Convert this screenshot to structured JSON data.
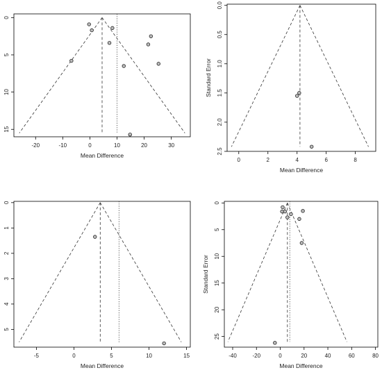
{
  "chart_data": [
    {
      "type": "scatter",
      "subtype": "funnel-plot",
      "xlabel": "Mean Difference",
      "ylabel": "",
      "xlim": [
        -28,
        37
      ],
      "ylim": [
        16,
        -0.5
      ],
      "y_reversed": true,
      "xticks": [
        -20,
        -10,
        0,
        10,
        20,
        30
      ],
      "yticks": [
        0,
        5,
        10,
        15
      ],
      "pooled_estimate": 4.5,
      "funnel_apex_se": 0,
      "funnel_base_se": 15.5,
      "funnel_base_x": [
        -26,
        35
      ],
      "reference_line": 10,
      "points": [
        {
          "x": -0.3,
          "y": 0.9
        },
        {
          "x": 0.7,
          "y": 1.7
        },
        {
          "x": 8.3,
          "y": 1.4
        },
        {
          "x": 7.2,
          "y": 3.4
        },
        {
          "x": 22.5,
          "y": 2.5
        },
        {
          "x": 21.5,
          "y": 3.6
        },
        {
          "x": -6.8,
          "y": 5.8
        },
        {
          "x": 12.5,
          "y": 6.5
        },
        {
          "x": 25.3,
          "y": 6.2
        },
        {
          "x": 14.8,
          "y": 15.7
        }
      ]
    },
    {
      "type": "scatter",
      "subtype": "funnel-plot",
      "xlabel": "Mean Difference",
      "ylabel": "Standard Error",
      "xlim": [
        -0.8,
        9.4
      ],
      "ylim": [
        2.5,
        -0.02
      ],
      "y_reversed": true,
      "xticks": [
        0,
        2,
        4,
        6,
        8
      ],
      "yticks": [
        0.0,
        0.5,
        1.0,
        1.5,
        2.0,
        2.5
      ],
      "ytick_labels": [
        "0.0",
        "0.5",
        "1.0",
        "1.5",
        "2.0",
        "2.5"
      ],
      "pooled_estimate": 4.2,
      "funnel_apex_se": 0,
      "funnel_base_se": 2.42,
      "funnel_base_x": [
        -0.5,
        8.9
      ],
      "reference_line": null,
      "points": [
        {
          "x": 4.15,
          "y": 1.5
        },
        {
          "x": 4.0,
          "y": 1.55
        },
        {
          "x": 5.0,
          "y": 2.42
        }
      ]
    },
    {
      "type": "scatter",
      "subtype": "funnel-plot",
      "xlabel": "Mean Difference",
      "ylabel": "Standard Error",
      "xlim": [
        -8,
        15.5
      ],
      "ylim": [
        5.7,
        -0.05
      ],
      "y_reversed": true,
      "xticks": [
        -5,
        0,
        5,
        10,
        15
      ],
      "yticks": [
        0,
        1,
        2,
        3,
        4,
        5
      ],
      "pooled_estimate": 3.5,
      "funnel_apex_se": 0,
      "funnel_base_se": 5.5,
      "funnel_base_x": [
        -7.3,
        14.3
      ],
      "reference_line": 6,
      "points": [
        {
          "x": 2.8,
          "y": 1.35
        },
        {
          "x": 12.0,
          "y": 5.55
        }
      ]
    },
    {
      "type": "scatter",
      "subtype": "funnel-plot",
      "xlabel": "Mean Difference",
      "ylabel": "Standard Error",
      "xlim": [
        -47,
        82
      ],
      "ylim": [
        27,
        -0.3
      ],
      "y_reversed": true,
      "xticks": [
        -40,
        -20,
        0,
        20,
        40,
        60,
        80
      ],
      "yticks": [
        0,
        5,
        10,
        15,
        20,
        25
      ],
      "pooled_estimate": 6,
      "funnel_apex_se": 0,
      "funnel_base_se": 26,
      "funnel_base_x": [
        -44,
        56
      ],
      "reference_line": 8,
      "points": [
        {
          "x": 2,
          "y": 0.8
        },
        {
          "x": 1.5,
          "y": 1.6
        },
        {
          "x": 4,
          "y": 1.6
        },
        {
          "x": 9,
          "y": 2.1
        },
        {
          "x": 6,
          "y": 2.7
        },
        {
          "x": 16,
          "y": 3.0
        },
        {
          "x": 19,
          "y": 1.5
        },
        {
          "x": 18,
          "y": 7.5
        },
        {
          "x": -4.5,
          "y": 26.2
        }
      ]
    }
  ]
}
